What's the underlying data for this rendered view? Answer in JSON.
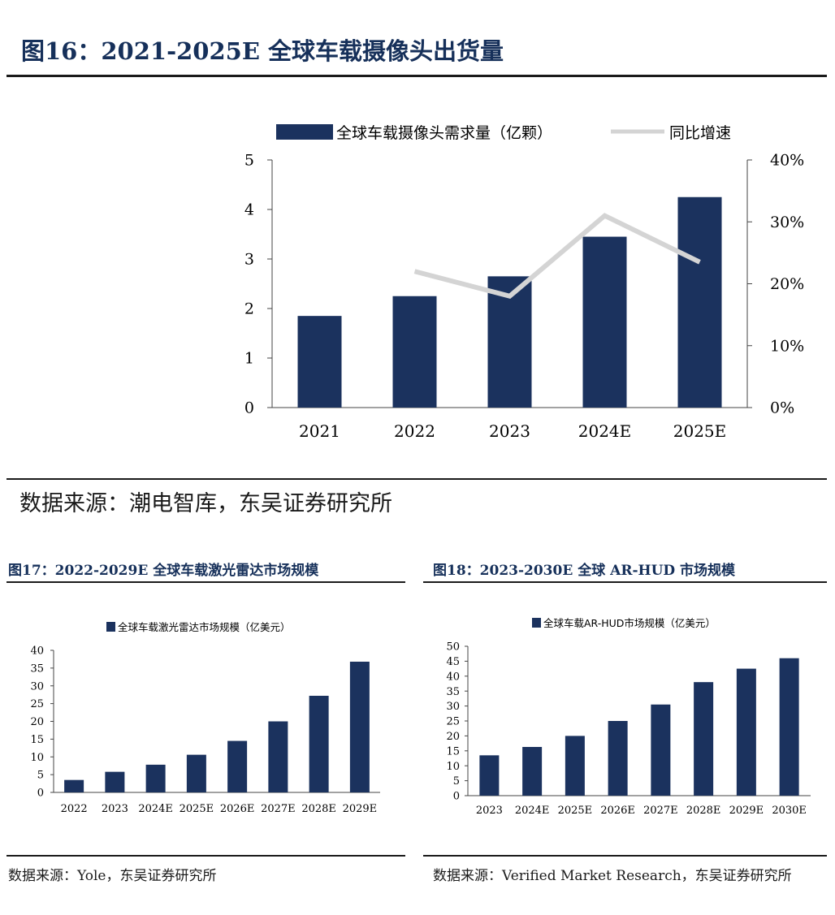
{
  "fig16": {
    "title": "图16：2021-2025E 全球车载摄像头出货量",
    "source": "数据来源：潮电智库，东吴证券研究所"
  },
  "fig17": {
    "title": "图17：2022-2029E 全球车载激光雷达市场规模",
    "source": "数据来源：Yole，东吴证券研究所"
  },
  "fig18": {
    "title": "图18：2023-2030E 全球 AR-HUD 市场规模",
    "source": "数据来源：Verified Market Research，东吴证券研究所"
  },
  "colors": {
    "bar": "#1b325e",
    "line": "#d4d4d4",
    "title": "#16305a"
  },
  "chart_data": [
    {
      "id": "chart16",
      "type": "bar",
      "categories": [
        "2021",
        "2022",
        "2023",
        "2024E",
        "2025E"
      ],
      "series": [
        {
          "name": "全球车载摄像头需求量（亿颗）",
          "type": "bar",
          "axis": "left",
          "values": [
            1.85,
            2.25,
            2.65,
            3.45,
            4.25
          ]
        },
        {
          "name": "同比增速",
          "type": "line",
          "axis": "right",
          "values": [
            null,
            0.22,
            0.18,
            0.31,
            0.235
          ]
        }
      ],
      "ylim": [
        0,
        5
      ],
      "yticks": [
        "0",
        "1",
        "2",
        "3",
        "4",
        "5"
      ],
      "y2lim": [
        0,
        0.4
      ],
      "y2ticks": [
        "0%",
        "10%",
        "20%",
        "30%",
        "40%"
      ],
      "legend": "top",
      "grid": false
    },
    {
      "id": "chart17",
      "type": "bar",
      "categories": [
        "2022",
        "2023",
        "2024E",
        "2025E",
        "2026E",
        "2027E",
        "2028E",
        "2029E"
      ],
      "series": [
        {
          "name": "全球车载激光雷达市场规模（亿美元）",
          "values": [
            3.5,
            5.8,
            7.8,
            10.6,
            14.5,
            20.0,
            27.2,
            36.8
          ]
        }
      ],
      "ylim": [
        0,
        40
      ],
      "yticks": [
        "0",
        "5",
        "10",
        "15",
        "20",
        "25",
        "30",
        "35",
        "40"
      ],
      "legend": "top",
      "grid": false
    },
    {
      "id": "chart18",
      "type": "bar",
      "categories": [
        "2023",
        "2024E",
        "2025E",
        "2026E",
        "2027E",
        "2028E",
        "2029E",
        "2030E"
      ],
      "series": [
        {
          "name": "全球车载AR-HUD市场规模（亿美元）",
          "values": [
            13.5,
            16.3,
            20.0,
            25.0,
            30.5,
            38.0,
            42.5,
            46.0
          ]
        }
      ],
      "ylim": [
        0,
        50
      ],
      "yticks": [
        "0",
        "5",
        "10",
        "15",
        "20",
        "25",
        "30",
        "35",
        "40",
        "45",
        "50"
      ],
      "legend": "top",
      "grid": false
    }
  ]
}
